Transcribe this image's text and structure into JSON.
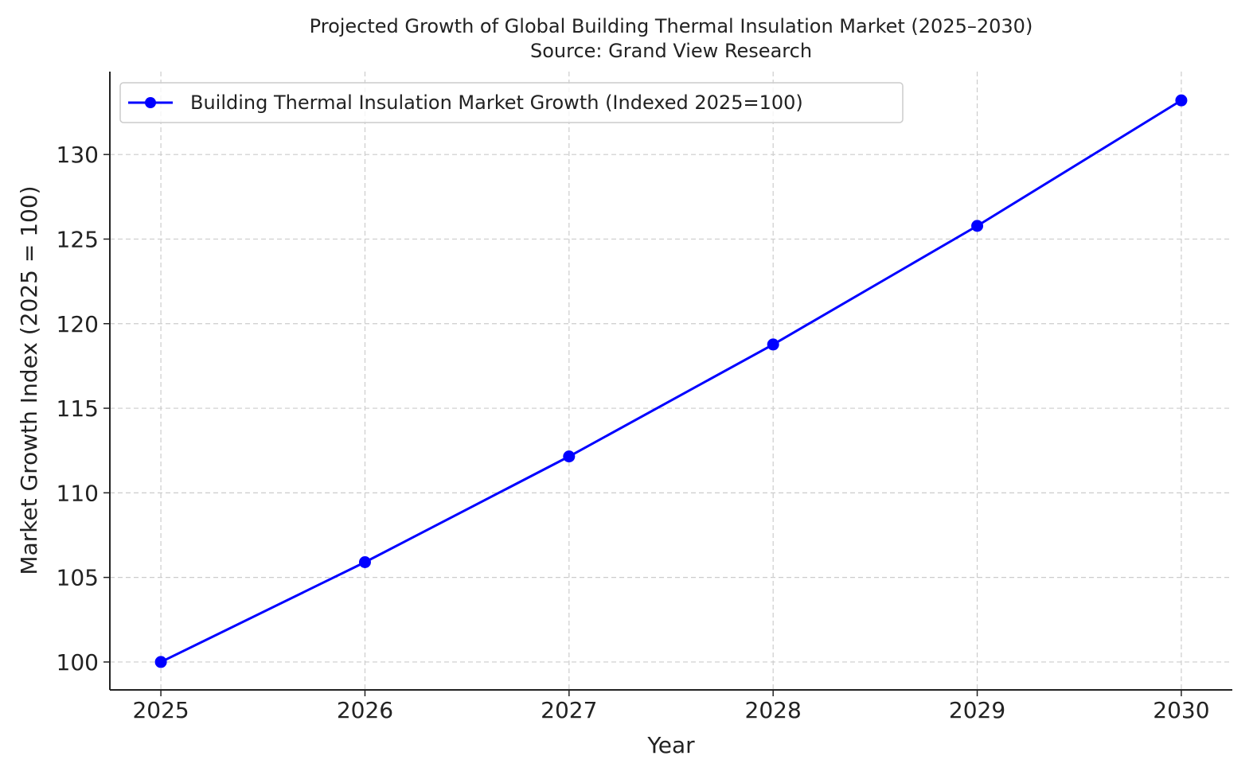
{
  "chart_data": {
    "type": "line",
    "title": "Projected Growth of Global Building Thermal Insulation Market (2025–2030)",
    "subtitle": "Source: Grand View Research",
    "xlabel": "Year",
    "ylabel": "Market Growth Index (2025 = 100)",
    "x": [
      2025,
      2026,
      2027,
      2028,
      2029,
      2030
    ],
    "x_tick_labels": [
      "2025",
      "2026",
      "2027",
      "2028",
      "2029",
      "2030"
    ],
    "y_ticks": [
      100,
      105,
      110,
      115,
      120,
      125,
      130
    ],
    "y_tick_labels": [
      "100",
      "105",
      "110",
      "115",
      "120",
      "125",
      "130"
    ],
    "xlim": [
      2024.75,
      2030.25
    ],
    "ylim": [
      98.35,
      134.9
    ],
    "grid": true,
    "legend_position": "top-left",
    "series": [
      {
        "name": "Building Thermal Insulation Market Growth (Indexed 2025=100)",
        "color": "#0000ff",
        "marker": "circle",
        "values": [
          100,
          105.9,
          112.15,
          118.77,
          125.78,
          133.2
        ]
      }
    ]
  }
}
